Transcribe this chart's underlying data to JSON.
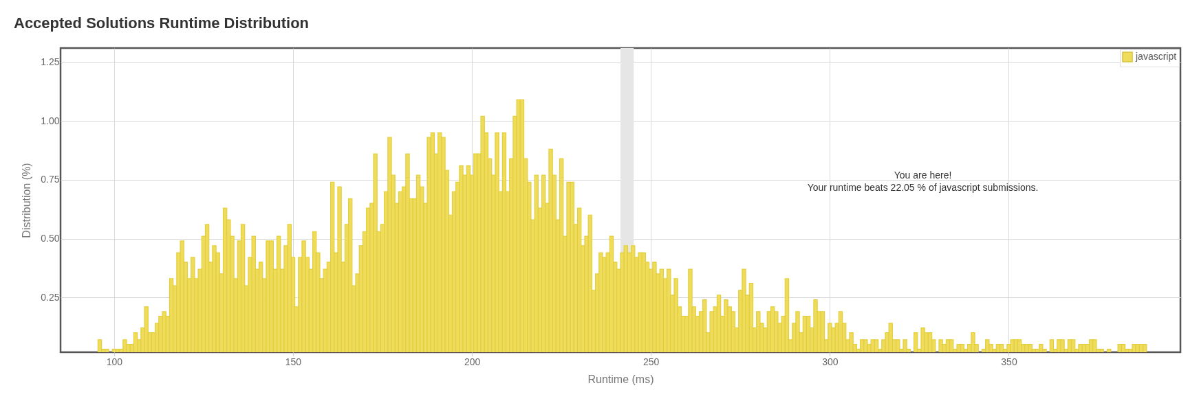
{
  "chart_data": {
    "type": "bar",
    "title": "Accepted Solutions Runtime Distribution",
    "xlabel": "Runtime (ms)",
    "ylabel": "Distribution (%)",
    "x": [
      96,
      97,
      98,
      99,
      100,
      101,
      102,
      103,
      104,
      105,
      106,
      107,
      108,
      109,
      110,
      111,
      112,
      113,
      114,
      115,
      116,
      117,
      118,
      119,
      120,
      121,
      122,
      123,
      124,
      125,
      126,
      127,
      128,
      129,
      130,
      131,
      132,
      133,
      134,
      135,
      136,
      137,
      138,
      139,
      140,
      141,
      142,
      143,
      144,
      145,
      146,
      147,
      148,
      149,
      150,
      151,
      152,
      153,
      154,
      155,
      156,
      157,
      158,
      159,
      160,
      161,
      162,
      163,
      164,
      165,
      166,
      167,
      168,
      169,
      170,
      171,
      172,
      173,
      174,
      175,
      176,
      177,
      178,
      179,
      180,
      181,
      182,
      183,
      184,
      185,
      186,
      187,
      188,
      189,
      190,
      191,
      192,
      193,
      194,
      195,
      196,
      197,
      198,
      199,
      200,
      201,
      202,
      203,
      204,
      205,
      206,
      207,
      208,
      209,
      210,
      211,
      212,
      213,
      214,
      215,
      216,
      217,
      218,
      219,
      220,
      221,
      222,
      223,
      224,
      225,
      226,
      227,
      228,
      229,
      230,
      231,
      232,
      233,
      234,
      235,
      236,
      237,
      238,
      239,
      240,
      241,
      242,
      243,
      244,
      245,
      246,
      247,
      248,
      249,
      250,
      251,
      252,
      253,
      254,
      255,
      256,
      257,
      258,
      259,
      260,
      261,
      262,
      263,
      264,
      265,
      266,
      267,
      268,
      269,
      270,
      271,
      272,
      273,
      274,
      275,
      276,
      277,
      278,
      279,
      280,
      281,
      282,
      283,
      284,
      285,
      286,
      287,
      288,
      289,
      290,
      291,
      292,
      293,
      294,
      295,
      296,
      297,
      298,
      299,
      300,
      301,
      302,
      303,
      304,
      305,
      306,
      307,
      308,
      309,
      310,
      311,
      312,
      313,
      314,
      315,
      316,
      317,
      318,
      319,
      320,
      321,
      322,
      323,
      324,
      325,
      326,
      327,
      328,
      329,
      330,
      331,
      332,
      333,
      334,
      335,
      336,
      337,
      338,
      339,
      340,
      341,
      342,
      343,
      344,
      345,
      346,
      347,
      348,
      349,
      350,
      351,
      352,
      353,
      354,
      355,
      356,
      357,
      358,
      359,
      360,
      361,
      362,
      363,
      364,
      365,
      366,
      367,
      368,
      369,
      370,
      371,
      372,
      373,
      374,
      375,
      376,
      377,
      378,
      379,
      380,
      381,
      382,
      383,
      384,
      385,
      386,
      387,
      388
    ],
    "series": [
      {
        "name": "javascript",
        "color": "#efdc5c",
        "values": [
          0.07,
          0.03,
          0.03,
          null,
          0.03,
          0.03,
          0.03,
          0.07,
          0.05,
          0.05,
          0.1,
          0.07,
          0.12,
          0.21,
          0.1,
          0.1,
          0.14,
          0.17,
          0.19,
          0.17,
          0.33,
          0.3,
          0.44,
          0.49,
          0.4,
          0.33,
          0.42,
          0.33,
          0.37,
          0.51,
          0.56,
          0.4,
          0.47,
          0.44,
          0.35,
          0.63,
          0.58,
          0.51,
          0.33,
          0.49,
          0.56,
          0.3,
          0.42,
          0.51,
          0.37,
          0.4,
          0.33,
          0.49,
          0.49,
          0.37,
          0.51,
          0.37,
          0.47,
          0.56,
          0.42,
          0.21,
          0.42,
          0.49,
          0.42,
          0.37,
          0.53,
          0.44,
          0.33,
          0.37,
          0.4,
          0.74,
          0.44,
          0.72,
          0.4,
          0.56,
          0.67,
          0.3,
          0.35,
          0.47,
          0.53,
          0.63,
          0.65,
          0.86,
          0.53,
          0.56,
          0.7,
          0.93,
          0.77,
          0.65,
          0.7,
          0.72,
          0.86,
          0.67,
          0.67,
          0.77,
          0.72,
          0.65,
          0.93,
          0.95,
          0.86,
          0.95,
          0.93,
          0.79,
          0.6,
          0.7,
          0.74,
          0.81,
          0.77,
          0.81,
          0.77,
          0.86,
          0.86,
          1.02,
          0.95,
          0.84,
          0.77,
          0.95,
          0.7,
          0.95,
          0.7,
          0.84,
          1.02,
          1.09,
          1.09,
          0.84,
          0.74,
          0.58,
          0.77,
          0.63,
          0.77,
          0.65,
          0.88,
          0.77,
          0.58,
          0.84,
          0.51,
          0.74,
          0.74,
          0.56,
          0.63,
          0.47,
          0.51,
          0.6,
          0.28,
          0.35,
          0.44,
          0.42,
          0.44,
          0.51,
          0.4,
          0.37,
          0.44,
          0.47,
          0.44,
          0.47,
          0.42,
          0.44,
          0.44,
          0.4,
          0.37,
          0.4,
          0.35,
          0.37,
          0.33,
          0.37,
          0.26,
          0.33,
          0.21,
          0.17,
          0.17,
          0.37,
          0.21,
          0.17,
          0.19,
          0.24,
          0.1,
          0.19,
          0.21,
          0.26,
          0.17,
          0.24,
          0.21,
          0.19,
          0.12,
          0.28,
          0.37,
          0.26,
          0.31,
          0.12,
          0.19,
          0.14,
          0.12,
          0.19,
          0.21,
          0.19,
          0.14,
          0.17,
          0.33,
          0.07,
          0.14,
          0.19,
          0.1,
          0.17,
          0.17,
          0.12,
          0.24,
          0.19,
          0.19,
          0.07,
          0.14,
          0.12,
          0.14,
          0.19,
          0.14,
          0.07,
          0.1,
          0.05,
          0.03,
          0.07,
          0.07,
          0.05,
          0.07,
          0.07,
          0.03,
          0.07,
          0.1,
          0.14,
          0.07,
          0.07,
          0.03,
          0.07,
          0.03,
          null,
          0.1,
          0.03,
          0.12,
          0.1,
          0.1,
          0.07,
          null,
          0.07,
          0.05,
          0.07,
          0.07,
          0.03,
          0.05,
          0.05,
          0.03,
          0.05,
          0.1,
          0.05,
          null,
          0.03,
          0.07,
          0.05,
          0.03,
          0.05,
          0.05,
          0.03,
          0.05,
          0.07,
          0.07,
          0.07,
          0.05,
          0.05,
          0.05,
          0.03,
          0.03,
          0.05,
          0.03,
          null,
          0.07,
          0.03,
          0.07,
          0.07,
          0.03,
          0.07,
          0.07,
          0.03,
          0.05,
          0.05,
          0.05,
          0.07,
          0.07,
          0.03,
          0.03,
          null,
          0.03,
          null,
          null,
          0.05,
          0.05,
          0.03,
          0.03,
          0.05,
          0.05,
          0.05,
          0.05
        ]
      }
    ],
    "xlim": [
      86,
      397
    ],
    "xticks": [
      100,
      150,
      200,
      250,
      300,
      350
    ],
    "ylim": [
      0.017,
      1.31
    ],
    "yticks": [
      0.25,
      {
        "value": 0.5,
        "label": "0.50"
      },
      0.75,
      {
        "value": 1,
        "label": "1.00"
      },
      1.25
    ],
    "bands": [
      {
        "axis": "x",
        "from": 241.5,
        "to": 245.2,
        "color": "#e6e6e6"
      }
    ],
    "annotations": [
      "You are here!",
      "Your runtime beats 22.05 % of javascript submissions."
    ],
    "grid": true,
    "legend": "top right"
  }
}
